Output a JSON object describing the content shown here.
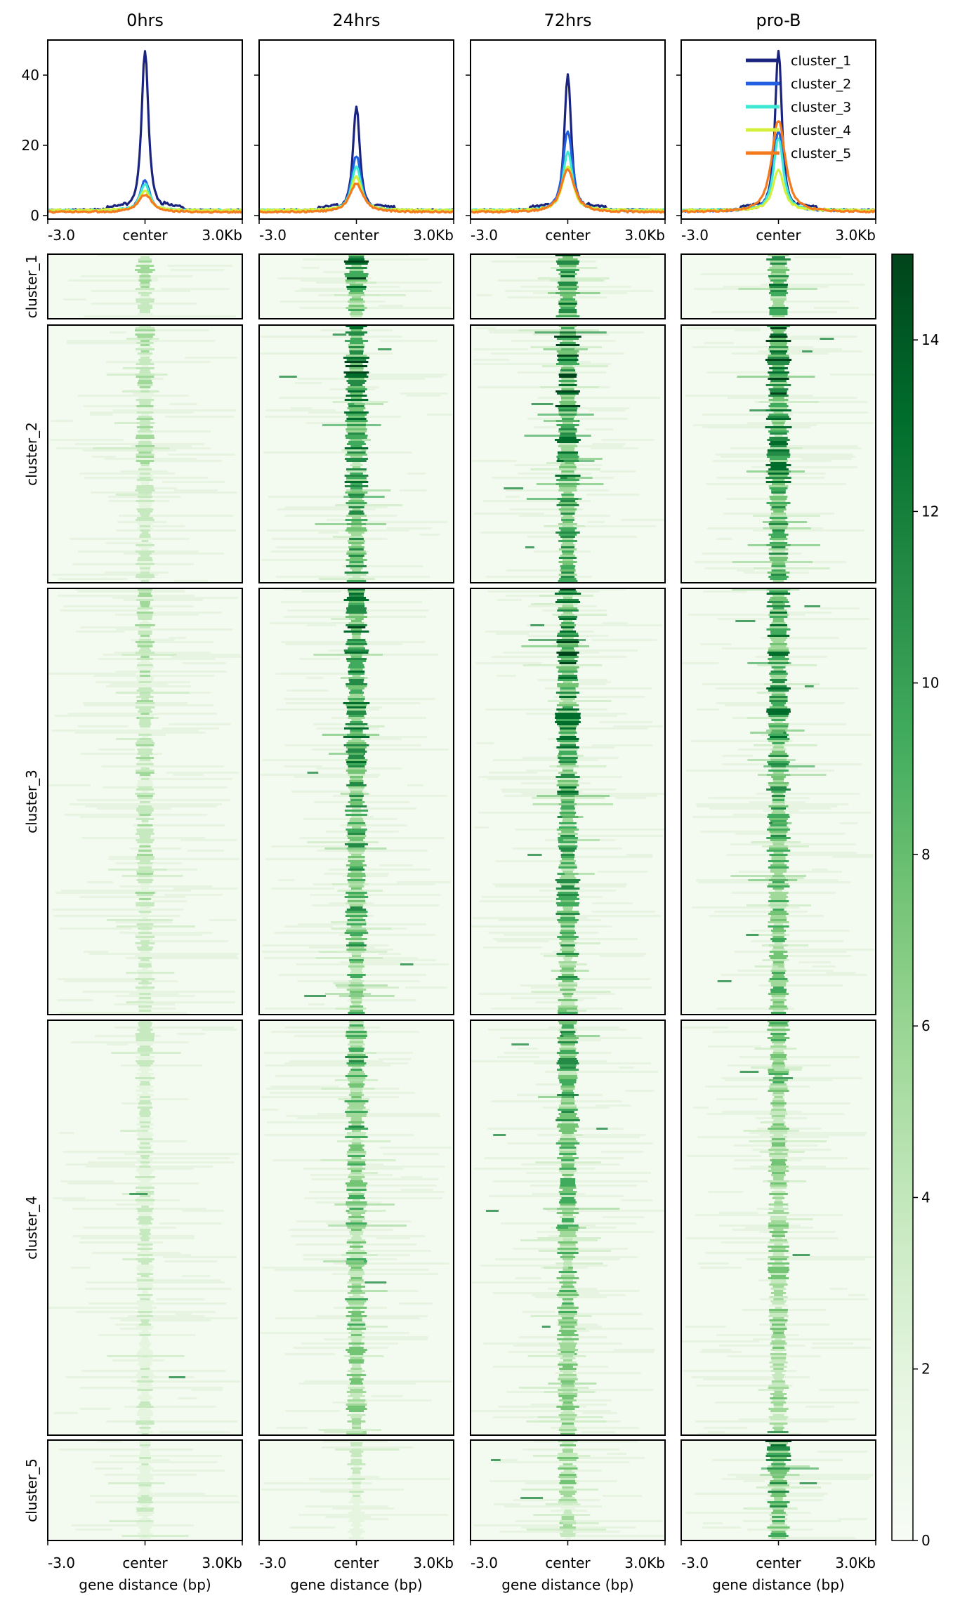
{
  "chart_data": {
    "type": "heatmap",
    "columns": [
      "0hrs",
      "24hrs",
      "72hrs",
      "pro-B"
    ],
    "x_ticks": [
      "-3.0",
      "center",
      "3.0Kb"
    ],
    "xlabel": "gene distance (bp)",
    "clusters": [
      "cluster_1",
      "cluster_2",
      "cluster_3",
      "cluster_4",
      "cluster_5"
    ],
    "profile": {
      "type": "line",
      "ylim": [
        -1,
        50
      ],
      "yticks": [
        0,
        20,
        40
      ],
      "legend_position": "top-right",
      "series_colors": [
        "#1a237e",
        "#1f5fe0",
        "#3ee8d2",
        "#d4f03c",
        "#f47a1e"
      ],
      "peaks": [
        [
          47,
          10,
          9,
          7,
          6
        ],
        [
          31,
          17,
          14,
          11,
          9
        ],
        [
          40,
          24,
          18,
          14,
          13
        ],
        [
          47,
          24,
          22,
          13,
          27
        ]
      ],
      "baseline": [
        1.5,
        1.3,
        1.5,
        1.5,
        1.0
      ],
      "width_kb": [
        0.25,
        0.35,
        0.35,
        0.4,
        0.5
      ]
    },
    "colorbar": {
      "range": [
        0,
        15
      ],
      "ticks": [
        0,
        2,
        4,
        6,
        8,
        10,
        12,
        14
      ],
      "colors": [
        "#f7fcf5",
        "#e5f5e0",
        "#c7e9c0",
        "#a1d99b",
        "#74c476",
        "#41ab5d",
        "#238b45",
        "#006d2c",
        "#00441b"
      ]
    },
    "cluster_signal": [
      [
        0.45,
        1.0,
        1.05,
        0.95
      ],
      [
        0.4,
        1.0,
        1.0,
        1.0
      ],
      [
        0.4,
        0.9,
        0.95,
        0.9
      ],
      [
        0.3,
        0.7,
        0.75,
        0.6
      ],
      [
        0.25,
        0.3,
        0.5,
        0.9
      ]
    ]
  }
}
